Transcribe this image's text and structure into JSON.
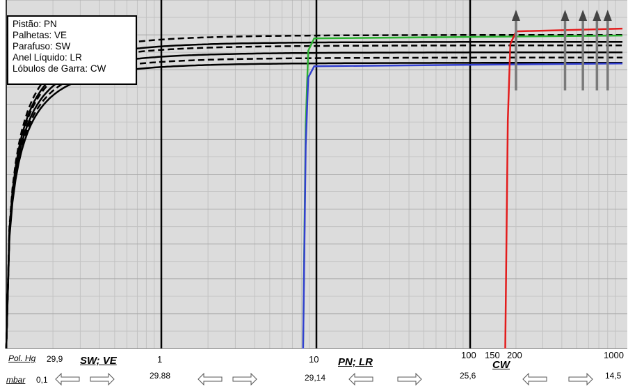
{
  "chart_data": {
    "type": "line",
    "xscale": "log",
    "grid": true,
    "legend_placement": "top-left",
    "legend": [
      "Pistão: PN",
      "Palhetas: VE",
      "Parafuso: SW",
      "Anel Líquido: LR",
      "Lóbulos de Garra: CW"
    ],
    "x_ticks_top_row": {
      "unit_label": "Pol. Hg",
      "first": "29,9",
      "labels": [
        "1",
        "10",
        "100",
        "150",
        "200",
        "1000"
      ],
      "values": [
        1,
        10,
        100,
        150,
        200,
        1000
      ]
    },
    "x_ticks_bottom_row": {
      "unit_label": "mbar",
      "first": "0,1",
      "labels": [
        "29.88",
        "29,14",
        "25,6",
        "14,5"
      ]
    },
    "group_labels": [
      "SW; VE",
      "PN; LR",
      "CW"
    ],
    "xlim": [
      0.1,
      1000
    ],
    "ylim": [
      0,
      100
    ],
    "series": [
      {
        "color": "#000000",
        "style": "solid",
        "y_max": 82,
        "x_start": 0.1
      },
      {
        "color": "#000000",
        "style": "solid",
        "y_max": 85,
        "x_start": 0.1
      },
      {
        "color": "#000000",
        "style": "solid",
        "y_max": 88,
        "x_start": 0.1
      },
      {
        "color": "#000000",
        "style": "dashed",
        "y_max": 83.5,
        "x_start": 0.1
      },
      {
        "color": "#000000",
        "style": "dashed",
        "y_max": 87,
        "x_start": 0.1
      },
      {
        "color": "#000000",
        "style": "dashed",
        "y_max": 90,
        "x_start": 0.1
      },
      {
        "color": "#2db233",
        "style": "solid",
        "y_max": 89,
        "x_start": 8.2
      },
      {
        "color": "#3340d0",
        "style": "solid",
        "y_max": 81,
        "x_start": 8.2
      },
      {
        "color": "#e31c1c",
        "style": "solid",
        "y_max": 91,
        "x_start": 170
      }
    ],
    "arrows_x": [
      200,
      420,
      550,
      680,
      800
    ]
  },
  "colors": {
    "plot_bg": "#dcdcdc",
    "grid_major": "#a8a8a8",
    "grid_minor": "#c2c2c2",
    "green": "#2db233",
    "blue": "#3340d0",
    "red": "#e31c1c",
    "arrow": "#7a7a7a"
  }
}
